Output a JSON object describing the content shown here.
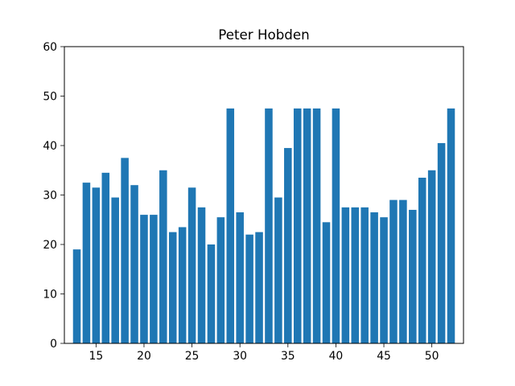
{
  "chart_data": {
    "type": "bar",
    "title": "Peter Hobden",
    "xlabel": "",
    "ylabel": "",
    "x": [
      13,
      14,
      15,
      16,
      17,
      18,
      19,
      20,
      21,
      22,
      23,
      24,
      25,
      26,
      27,
      28,
      29,
      30,
      31,
      32,
      33,
      34,
      35,
      36,
      37,
      38,
      39,
      40,
      41,
      42,
      43,
      44,
      45,
      46,
      47,
      48,
      49,
      50,
      51,
      52
    ],
    "values": [
      19,
      32.5,
      31.5,
      34.5,
      29.5,
      37.5,
      32,
      26,
      26,
      35,
      22.5,
      23.5,
      31.5,
      27.5,
      20,
      25.5,
      47.5,
      26.5,
      22,
      22.5,
      47.5,
      29.5,
      39.5,
      47.5,
      47.5,
      47.5,
      24.5,
      47.5,
      27.5,
      27.5,
      27.5,
      26.5,
      25.5,
      29,
      29,
      27,
      33.5,
      35,
      40.5,
      47.5
    ],
    "xlim": [
      11.7,
      53.3
    ],
    "ylim": [
      0,
      60
    ],
    "xticks": [
      15,
      20,
      25,
      30,
      35,
      40,
      45,
      50
    ],
    "yticks": [
      0,
      10,
      20,
      30,
      40,
      50,
      60
    ],
    "bar_color": "#1f77b4",
    "grid": false,
    "legend": "none"
  }
}
